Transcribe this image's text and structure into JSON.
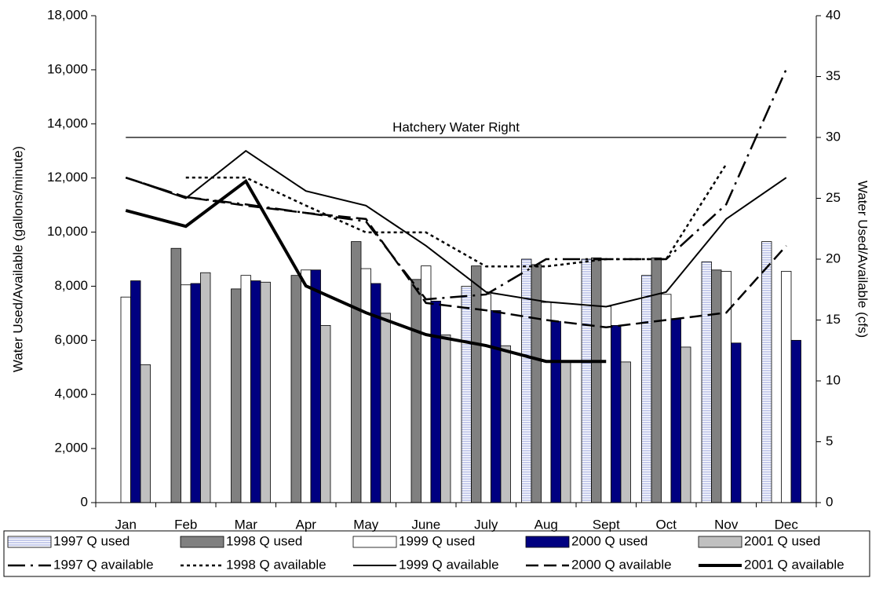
{
  "chart_data": {
    "type": "bar",
    "categories": [
      "Jan",
      "Feb",
      "Mar",
      "Apr",
      "May",
      "June",
      "July",
      "Aug",
      "Sept",
      "Oct",
      "Nov",
      "Dec"
    ],
    "y_label": "Water Used/Available (gallons/minute)",
    "y2_label": "Water Used/Available (cfs)",
    "ylim": [
      0,
      18000
    ],
    "yticks": [
      {
        "value": 0,
        "label": "0"
      },
      {
        "value": 2000,
        "label": "2,000"
      },
      {
        "value": 4000,
        "label": "4,000"
      },
      {
        "value": 6000,
        "label": "6,000"
      },
      {
        "value": 8000,
        "label": "8,000"
      },
      {
        "value": 10000,
        "label": "10,000"
      },
      {
        "value": 12000,
        "label": "12,000"
      },
      {
        "value": 14000,
        "label": "14,000"
      },
      {
        "value": 16000,
        "label": "16,000"
      },
      {
        "value": 18000,
        "label": "18,000"
      }
    ],
    "y2lim": [
      0,
      40
    ],
    "y2ticks": [
      0,
      5,
      10,
      15,
      20,
      25,
      30,
      35,
      40
    ],
    "annotations": [
      {
        "text": "Hatchery Water Right",
        "value": 13500
      }
    ],
    "series": [
      {
        "name": "1997 Q used",
        "type": "bar",
        "color": "#8c9ad8",
        "pattern": "horizontal-stripes",
        "values": [
          null,
          null,
          null,
          null,
          null,
          null,
          8000,
          9000,
          9000,
          8400,
          8900,
          9650
        ]
      },
      {
        "name": "1998 Q used",
        "type": "bar",
        "color": "#808080",
        "values": [
          null,
          9400,
          7900,
          8400,
          9650,
          8250,
          8750,
          8800,
          9050,
          9050,
          8600,
          null
        ]
      },
      {
        "name": "1999 Q used",
        "type": "bar",
        "color": "#ffffff",
        "values": [
          7600,
          8050,
          8400,
          8600,
          8650,
          8750,
          7700,
          7400,
          7250,
          7700,
          8550,
          8550
        ]
      },
      {
        "name": "2000 Q used",
        "type": "bar",
        "color": "#000080",
        "values": [
          8200,
          8100,
          8200,
          8600,
          8100,
          7450,
          7100,
          6700,
          6550,
          6800,
          5900,
          6000
        ]
      },
      {
        "name": "2001 Q used",
        "type": "bar",
        "color": "#c0c0c0",
        "values": [
          5100,
          8500,
          8150,
          6550,
          7000,
          6200,
          5800,
          5200,
          5200,
          5750,
          null,
          null
        ]
      },
      {
        "name": "1997 Q available",
        "type": "line",
        "axis": "y2",
        "color": "#000000",
        "style": "dash-dot",
        "values": [
          26.7,
          25.1,
          24.5,
          23.8,
          23.1,
          16.7,
          17.1,
          20.0,
          20.0,
          20.0,
          24.5,
          35.6
        ]
      },
      {
        "name": "1998 Q available",
        "type": "line",
        "axis": "y2",
        "color": "#000000",
        "style": "dot",
        "values": [
          null,
          26.7,
          26.7,
          24.4,
          22.2,
          22.2,
          19.4,
          19.4,
          20.0,
          20.0,
          27.8,
          null
        ]
      },
      {
        "name": "1999 Q available",
        "type": "line",
        "axis": "y2",
        "color": "#000000",
        "style": "solid",
        "values": [
          26.7,
          25.0,
          28.9,
          25.6,
          24.4,
          21.1,
          17.3,
          16.5,
          16.1,
          17.3,
          23.3,
          26.7
        ]
      },
      {
        "name": "2000 Q available",
        "type": "line",
        "axis": "y2",
        "color": "#000000",
        "style": "dash",
        "values": [
          26.7,
          25.1,
          24.4,
          23.8,
          23.3,
          16.4,
          15.8,
          15.0,
          14.4,
          15.0,
          15.6,
          21.1
        ]
      },
      {
        "name": "2001 Q available",
        "type": "line",
        "axis": "y2",
        "color": "#000000",
        "style": "thick",
        "values": [
          24.0,
          22.7,
          26.4,
          17.8,
          15.6,
          13.8,
          12.9,
          11.6,
          11.6,
          null,
          null,
          null
        ]
      }
    ]
  }
}
